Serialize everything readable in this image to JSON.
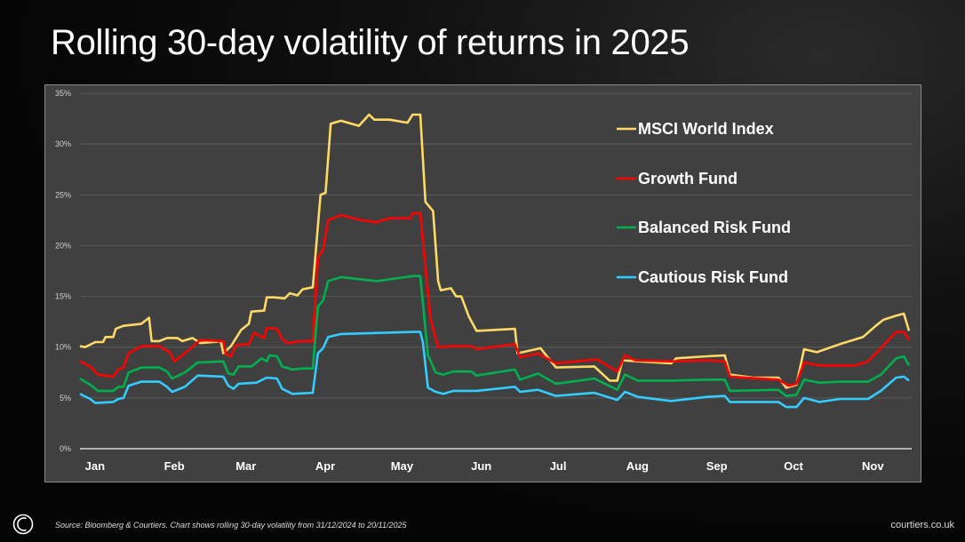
{
  "title": "Rolling 30-day volatility of returns in 2025",
  "footer": {
    "source": "Source: Bloomberg & Courtiers. Chart shows rolling 30-day volatility from 31/12/2024 to 20/11/2025",
    "website": "courtiers.co.uk"
  },
  "chart_data": {
    "type": "line",
    "title": "",
    "xlabel": "",
    "ylabel": "",
    "ylim": [
      0,
      35
    ],
    "yticks": [
      "0%",
      "5%",
      "10%",
      "15%",
      "20%",
      "25%",
      "30%",
      "35%"
    ],
    "xrange": [
      "2024-12-31",
      "2025-11-20"
    ],
    "xticks": [
      {
        "label": "Jan",
        "date": "2025-01-01"
      },
      {
        "label": "Feb",
        "date": "2025-02-01"
      },
      {
        "label": "Mar",
        "date": "2025-03-01"
      },
      {
        "label": "Apr",
        "date": "2025-04-01"
      },
      {
        "label": "May",
        "date": "2025-05-01"
      },
      {
        "label": "Jun",
        "date": "2025-06-01"
      },
      {
        "label": "Jul",
        "date": "2025-07-01"
      },
      {
        "label": "Aug",
        "date": "2025-08-01"
      },
      {
        "label": "Sep",
        "date": "2025-09-01"
      },
      {
        "label": "Oct",
        "date": "2025-10-01"
      },
      {
        "label": "Nov",
        "date": "2025-11-01"
      }
    ],
    "grid": true,
    "legend_position": "top-right",
    "series": [
      {
        "name": "MSCI World Index",
        "color": "#ffd966",
        "points": [
          [
            "2024-12-31",
            10.1
          ],
          [
            "2025-01-02",
            10.0
          ],
          [
            "2025-01-06",
            10.5
          ],
          [
            "2025-01-09",
            10.5
          ],
          [
            "2025-01-10",
            11.0
          ],
          [
            "2025-01-13",
            11.0
          ],
          [
            "2025-01-14",
            11.8
          ],
          [
            "2025-01-17",
            12.1
          ],
          [
            "2025-01-24",
            12.3
          ],
          [
            "2025-01-27",
            12.9
          ],
          [
            "2025-01-28",
            10.6
          ],
          [
            "2025-01-31",
            10.6
          ],
          [
            "2025-02-03",
            10.9
          ],
          [
            "2025-02-07",
            10.9
          ],
          [
            "2025-02-09",
            10.6
          ],
          [
            "2025-02-13",
            10.9
          ],
          [
            "2025-02-16",
            10.4
          ],
          [
            "2025-02-21",
            10.5
          ],
          [
            "2025-02-24",
            10.6
          ],
          [
            "2025-02-25",
            9.4
          ],
          [
            "2025-02-28",
            10.1
          ],
          [
            "2025-03-04",
            11.7
          ],
          [
            "2025-03-07",
            12.3
          ],
          [
            "2025-03-08",
            13.5
          ],
          [
            "2025-03-13",
            13.6
          ],
          [
            "2025-03-14",
            14.9
          ],
          [
            "2025-03-17",
            14.9
          ],
          [
            "2025-03-21",
            14.8
          ],
          [
            "2025-03-23",
            15.3
          ],
          [
            "2025-03-26",
            15.1
          ],
          [
            "2025-03-28",
            15.7
          ],
          [
            "2025-04-01",
            15.9
          ],
          [
            "2025-04-04",
            25.0
          ],
          [
            "2025-04-06",
            25.2
          ],
          [
            "2025-04-08",
            32.0
          ],
          [
            "2025-04-12",
            32.3
          ],
          [
            "2025-04-19",
            31.8
          ],
          [
            "2025-04-23",
            32.9
          ],
          [
            "2025-04-25",
            32.4
          ],
          [
            "2025-05-01",
            32.4
          ],
          [
            "2025-05-08",
            32.1
          ],
          [
            "2025-05-10",
            32.9
          ],
          [
            "2025-05-13",
            32.9
          ],
          [
            "2025-05-15",
            24.3
          ],
          [
            "2025-05-18",
            23.4
          ],
          [
            "2025-05-20",
            16.5
          ],
          [
            "2025-05-21",
            15.6
          ],
          [
            "2025-05-25",
            15.8
          ],
          [
            "2025-05-27",
            15.0
          ],
          [
            "2025-05-29",
            15.0
          ],
          [
            "2025-06-01",
            13.0
          ],
          [
            "2025-06-04",
            11.6
          ],
          [
            "2025-06-19",
            11.8
          ],
          [
            "2025-06-20",
            9.4
          ],
          [
            "2025-06-29",
            9.9
          ],
          [
            "2025-07-05",
            8.0
          ],
          [
            "2025-07-20",
            8.1
          ],
          [
            "2025-07-26",
            6.7
          ],
          [
            "2025-07-29",
            6.7
          ],
          [
            "2025-07-31",
            8.7
          ],
          [
            "2025-08-19",
            8.4
          ],
          [
            "2025-08-21",
            8.9
          ],
          [
            "2025-09-02",
            9.1
          ],
          [
            "2025-09-09",
            9.2
          ],
          [
            "2025-09-11",
            7.3
          ],
          [
            "2025-09-20",
            7.0
          ],
          [
            "2025-09-30",
            7.0
          ],
          [
            "2025-10-03",
            6.0
          ],
          [
            "2025-10-07",
            6.3
          ],
          [
            "2025-10-10",
            9.8
          ],
          [
            "2025-10-15",
            9.5
          ],
          [
            "2025-10-24",
            10.3
          ],
          [
            "2025-11-02",
            11.0
          ],
          [
            "2025-11-07",
            12.1
          ],
          [
            "2025-11-10",
            12.7
          ],
          [
            "2025-11-15",
            13.1
          ],
          [
            "2025-11-18",
            13.3
          ],
          [
            "2025-11-20",
            11.6
          ]
        ]
      },
      {
        "name": "Growth Fund",
        "color": "#ff0000",
        "points": [
          [
            "2024-12-31",
            8.6
          ],
          [
            "2025-01-04",
            8.1
          ],
          [
            "2025-01-07",
            7.3
          ],
          [
            "2025-01-13",
            7.1
          ],
          [
            "2025-01-15",
            7.8
          ],
          [
            "2025-01-17",
            8.0
          ],
          [
            "2025-01-19",
            9.4
          ],
          [
            "2025-01-24",
            10.1
          ],
          [
            "2025-01-31",
            10.1
          ],
          [
            "2025-02-04",
            9.5
          ],
          [
            "2025-02-06",
            8.6
          ],
          [
            "2025-02-11",
            9.6
          ],
          [
            "2025-02-16",
            10.7
          ],
          [
            "2025-02-25",
            10.6
          ],
          [
            "2025-02-26",
            9.3
          ],
          [
            "2025-02-28",
            9.1
          ],
          [
            "2025-03-02",
            10.2
          ],
          [
            "2025-03-07",
            10.3
          ],
          [
            "2025-03-09",
            11.4
          ],
          [
            "2025-03-13",
            10.9
          ],
          [
            "2025-03-14",
            11.9
          ],
          [
            "2025-03-18",
            11.8
          ],
          [
            "2025-03-20",
            10.8
          ],
          [
            "2025-03-22",
            10.4
          ],
          [
            "2025-03-28",
            10.6
          ],
          [
            "2025-04-01",
            10.6
          ],
          [
            "2025-04-03",
            18.8
          ],
          [
            "2025-04-05",
            19.6
          ],
          [
            "2025-04-07",
            22.5
          ],
          [
            "2025-04-12",
            23.0
          ],
          [
            "2025-04-20",
            22.5
          ],
          [
            "2025-04-26",
            22.3
          ],
          [
            "2025-05-01",
            22.7
          ],
          [
            "2025-05-09",
            22.7
          ],
          [
            "2025-05-10",
            23.2
          ],
          [
            "2025-05-13",
            23.2
          ],
          [
            "2025-05-17",
            12.8
          ],
          [
            "2025-05-20",
            10.0
          ],
          [
            "2025-05-25",
            10.1
          ],
          [
            "2025-06-02",
            10.1
          ],
          [
            "2025-06-04",
            9.8
          ],
          [
            "2025-06-19",
            10.3
          ],
          [
            "2025-06-21",
            9.0
          ],
          [
            "2025-06-28",
            9.4
          ],
          [
            "2025-07-05",
            8.4
          ],
          [
            "2025-07-21",
            8.8
          ],
          [
            "2025-07-29",
            7.6
          ],
          [
            "2025-08-01",
            9.2
          ],
          [
            "2025-08-05",
            8.7
          ],
          [
            "2025-08-19",
            8.6
          ],
          [
            "2025-09-02",
            8.7
          ],
          [
            "2025-09-09",
            8.6
          ],
          [
            "2025-09-11",
            7.1
          ],
          [
            "2025-09-30",
            6.8
          ],
          [
            "2025-10-04",
            6.2
          ],
          [
            "2025-10-07",
            6.4
          ],
          [
            "2025-10-10",
            8.5
          ],
          [
            "2025-10-16",
            8.2
          ],
          [
            "2025-10-30",
            8.2
          ],
          [
            "2025-11-04",
            8.6
          ],
          [
            "2025-11-09",
            9.9
          ],
          [
            "2025-11-15",
            11.5
          ],
          [
            "2025-11-18",
            11.5
          ],
          [
            "2025-11-20",
            10.7
          ]
        ]
      },
      {
        "name": "Balanced Risk Fund",
        "color": "#00b050",
        "points": [
          [
            "2024-12-31",
            6.9
          ],
          [
            "2025-01-04",
            6.3
          ],
          [
            "2025-01-07",
            5.7
          ],
          [
            "2025-01-13",
            5.7
          ],
          [
            "2025-01-15",
            6.1
          ],
          [
            "2025-01-17",
            6.1
          ],
          [
            "2025-01-19",
            7.5
          ],
          [
            "2025-01-24",
            8.0
          ],
          [
            "2025-01-31",
            8.0
          ],
          [
            "2025-02-03",
            7.6
          ],
          [
            "2025-02-05",
            6.9
          ],
          [
            "2025-02-10",
            7.5
          ],
          [
            "2025-02-15",
            8.5
          ],
          [
            "2025-02-25",
            8.6
          ],
          [
            "2025-02-27",
            7.4
          ],
          [
            "2025-03-01",
            7.3
          ],
          [
            "2025-03-03",
            8.1
          ],
          [
            "2025-03-08",
            8.1
          ],
          [
            "2025-03-12",
            8.9
          ],
          [
            "2025-03-14",
            8.6
          ],
          [
            "2025-03-15",
            9.2
          ],
          [
            "2025-03-18",
            9.1
          ],
          [
            "2025-03-20",
            8.1
          ],
          [
            "2025-03-24",
            7.8
          ],
          [
            "2025-03-28",
            7.9
          ],
          [
            "2025-04-01",
            7.9
          ],
          [
            "2025-04-03",
            14.0
          ],
          [
            "2025-04-05",
            14.6
          ],
          [
            "2025-04-07",
            16.5
          ],
          [
            "2025-04-12",
            16.9
          ],
          [
            "2025-04-26",
            16.5
          ],
          [
            "2025-05-10",
            17.0
          ],
          [
            "2025-05-13",
            17.0
          ],
          [
            "2025-05-16",
            9.2
          ],
          [
            "2025-05-19",
            7.5
          ],
          [
            "2025-05-22",
            7.3
          ],
          [
            "2025-05-26",
            7.6
          ],
          [
            "2025-06-02",
            7.6
          ],
          [
            "2025-06-04",
            7.2
          ],
          [
            "2025-06-19",
            7.8
          ],
          [
            "2025-06-21",
            6.8
          ],
          [
            "2025-06-28",
            7.4
          ],
          [
            "2025-07-05",
            6.4
          ],
          [
            "2025-07-20",
            6.9
          ],
          [
            "2025-07-29",
            5.8
          ],
          [
            "2025-08-01",
            7.3
          ],
          [
            "2025-08-06",
            6.7
          ],
          [
            "2025-08-19",
            6.7
          ],
          [
            "2025-09-02",
            6.8
          ],
          [
            "2025-09-09",
            6.8
          ],
          [
            "2025-09-11",
            5.7
          ],
          [
            "2025-09-30",
            5.8
          ],
          [
            "2025-10-03",
            5.2
          ],
          [
            "2025-10-07",
            5.3
          ],
          [
            "2025-10-10",
            6.8
          ],
          [
            "2025-10-16",
            6.5
          ],
          [
            "2025-10-24",
            6.6
          ],
          [
            "2025-11-04",
            6.6
          ],
          [
            "2025-11-09",
            7.3
          ],
          [
            "2025-11-15",
            8.9
          ],
          [
            "2025-11-18",
            9.1
          ],
          [
            "2025-11-20",
            8.2
          ]
        ]
      },
      {
        "name": "Cautious Risk Fund",
        "color": "#33ccff",
        "points": [
          [
            "2024-12-31",
            5.4
          ],
          [
            "2025-01-04",
            4.9
          ],
          [
            "2025-01-06",
            4.5
          ],
          [
            "2025-01-13",
            4.6
          ],
          [
            "2025-01-15",
            4.9
          ],
          [
            "2025-01-17",
            5.0
          ],
          [
            "2025-01-19",
            6.2
          ],
          [
            "2025-01-24",
            6.6
          ],
          [
            "2025-01-31",
            6.6
          ],
          [
            "2025-02-03",
            6.1
          ],
          [
            "2025-02-05",
            5.6
          ],
          [
            "2025-02-10",
            6.1
          ],
          [
            "2025-02-15",
            7.2
          ],
          [
            "2025-02-25",
            7.1
          ],
          [
            "2025-02-27",
            6.2
          ],
          [
            "2025-03-01",
            5.9
          ],
          [
            "2025-03-03",
            6.4
          ],
          [
            "2025-03-10",
            6.5
          ],
          [
            "2025-03-14",
            7.0
          ],
          [
            "2025-03-18",
            6.9
          ],
          [
            "2025-03-20",
            5.9
          ],
          [
            "2025-03-24",
            5.4
          ],
          [
            "2025-04-01",
            5.5
          ],
          [
            "2025-04-03",
            9.4
          ],
          [
            "2025-04-05",
            9.9
          ],
          [
            "2025-04-07",
            11.0
          ],
          [
            "2025-04-12",
            11.3
          ],
          [
            "2025-05-10",
            11.5
          ],
          [
            "2025-05-13",
            11.5
          ],
          [
            "2025-05-14",
            10.5
          ],
          [
            "2025-05-16",
            6.0
          ],
          [
            "2025-05-19",
            5.6
          ],
          [
            "2025-05-22",
            5.4
          ],
          [
            "2025-05-26",
            5.7
          ],
          [
            "2025-06-04",
            5.7
          ],
          [
            "2025-06-19",
            6.1
          ],
          [
            "2025-06-21",
            5.6
          ],
          [
            "2025-06-28",
            5.8
          ],
          [
            "2025-07-05",
            5.2
          ],
          [
            "2025-07-20",
            5.5
          ],
          [
            "2025-07-29",
            4.8
          ],
          [
            "2025-08-01",
            5.6
          ],
          [
            "2025-08-06",
            5.1
          ],
          [
            "2025-08-19",
            4.7
          ],
          [
            "2025-09-02",
            5.1
          ],
          [
            "2025-09-09",
            5.2
          ],
          [
            "2025-09-11",
            4.6
          ],
          [
            "2025-09-30",
            4.6
          ],
          [
            "2025-10-03",
            4.1
          ],
          [
            "2025-10-07",
            4.1
          ],
          [
            "2025-10-10",
            5.0
          ],
          [
            "2025-10-16",
            4.6
          ],
          [
            "2025-10-24",
            4.9
          ],
          [
            "2025-11-04",
            4.9
          ],
          [
            "2025-11-09",
            5.7
          ],
          [
            "2025-11-15",
            7.0
          ],
          [
            "2025-11-18",
            7.1
          ],
          [
            "2025-11-20",
            6.7
          ]
        ]
      }
    ]
  }
}
